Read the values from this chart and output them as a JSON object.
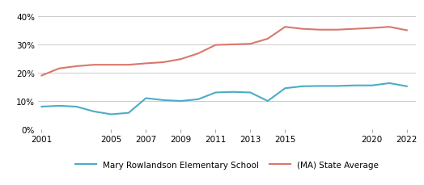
{
  "years": [
    2001,
    2002,
    2003,
    2004,
    2005,
    2006,
    2007,
    2008,
    2009,
    2010,
    2011,
    2012,
    2013,
    2014,
    2015,
    2016,
    2017,
    2018,
    2019,
    2020,
    2021,
    2022
  ],
  "school": [
    0.08,
    0.083,
    0.08,
    0.063,
    0.053,
    0.058,
    0.11,
    0.103,
    0.1,
    0.106,
    0.13,
    0.132,
    0.13,
    0.1,
    0.145,
    0.152,
    0.153,
    0.153,
    0.155,
    0.155,
    0.163,
    0.152
  ],
  "state": [
    0.19,
    0.215,
    0.223,
    0.228,
    0.228,
    0.228,
    0.233,
    0.237,
    0.248,
    0.268,
    0.298,
    0.3,
    0.302,
    0.32,
    0.362,
    0.355,
    0.352,
    0.352,
    0.355,
    0.358,
    0.362,
    0.35
  ],
  "school_color": "#4bacc6",
  "state_color": "#d9776c",
  "bg_color": "#ffffff",
  "grid_color": "#cccccc",
  "yticks": [
    0.0,
    0.1,
    0.2,
    0.3,
    0.4
  ],
  "xlim_min": 2000.8,
  "xlim_max": 2022.5,
  "ylim_min": 0.0,
  "ylim_max": 0.44,
  "xlabel_ticks": [
    2001,
    2005,
    2007,
    2009,
    2011,
    2013,
    2015,
    2020,
    2022
  ],
  "school_label": "Mary Rowlandson Elementary School",
  "state_label": "(MA) State Average",
  "line_width": 1.5
}
